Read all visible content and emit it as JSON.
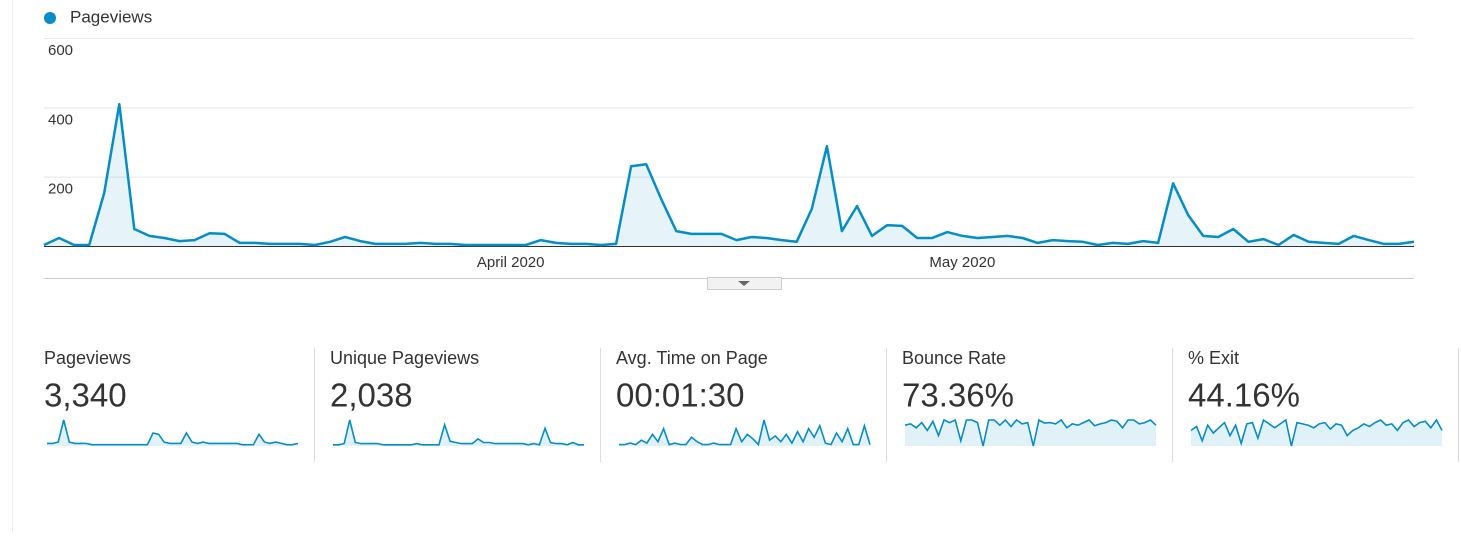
{
  "chart_data": {
    "type": "line",
    "categories": [
      null,
      null,
      null,
      null,
      null,
      null,
      null,
      null,
      null,
      null,
      null,
      null,
      null,
      null,
      null,
      null,
      null,
      null,
      null,
      null,
      null,
      null,
      null,
      null,
      null,
      null,
      null,
      null,
      null,
      null,
      null,
      "April 2020",
      null,
      null,
      null,
      null,
      null,
      null,
      null,
      null,
      null,
      null,
      null,
      null,
      null,
      null,
      null,
      null,
      null,
      null,
      null,
      null,
      null,
      null,
      null,
      null,
      null,
      null,
      null,
      null,
      null,
      "May 2020",
      null,
      null,
      null,
      null,
      null,
      null,
      null,
      null,
      null,
      null,
      null,
      null,
      null,
      null,
      null,
      null,
      null,
      null,
      null,
      null,
      null,
      null,
      null,
      null,
      null,
      null,
      null,
      null,
      null,
      null
    ],
    "series": [
      {
        "name": "Pageviews",
        "color": "#058dc7",
        "values": [
          3,
          23,
          3,
          3,
          153,
          409,
          49,
          29,
          23,
          14,
          17,
          37,
          35,
          9,
          9,
          6,
          6,
          6,
          3,
          12,
          26,
          14,
          6,
          6,
          6,
          9,
          6,
          6,
          3,
          3,
          3,
          3,
          3,
          17,
          9,
          6,
          6,
          3,
          6,
          230,
          236,
          135,
          43,
          35,
          35,
          35,
          17,
          26,
          23,
          17,
          12,
          107,
          288,
          43,
          115,
          29,
          60,
          58,
          23,
          23,
          40,
          29,
          23,
          26,
          29,
          23,
          9,
          17,
          14,
          12,
          3,
          9,
          6,
          14,
          9,
          181,
          89,
          29,
          26,
          49,
          12,
          20,
          3,
          32,
          12,
          9,
          6,
          29,
          17,
          6,
          6,
          12
        ]
      }
    ],
    "ylim": [
      0,
      600
    ],
    "yticks": [
      200,
      400,
      600
    ],
    "grid": true,
    "area": true
  },
  "metrics": [
    {
      "label": "Pageviews",
      "value": "3,340",
      "sparkline": [
        2,
        2,
        3,
        20,
        3,
        2,
        2,
        2,
        1,
        1,
        1,
        1,
        1,
        1,
        1,
        1,
        1,
        1,
        1,
        10,
        9,
        3,
        2,
        2,
        2,
        10,
        3,
        2,
        3,
        2,
        2,
        2,
        2,
        2,
        2,
        1,
        1,
        1,
        9,
        3,
        2,
        3,
        2,
        1,
        1,
        2
      ]
    },
    {
      "label": "Unique Pageviews",
      "value": "2,038",
      "sparkline": [
        1,
        1,
        2,
        22,
        3,
        2,
        2,
        2,
        2,
        1,
        1,
        1,
        1,
        1,
        1,
        2,
        1,
        1,
        1,
        1,
        18,
        4,
        3,
        2,
        2,
        2,
        6,
        3,
        3,
        2,
        2,
        2,
        2,
        2,
        2,
        1,
        2,
        1,
        15,
        3,
        2,
        2,
        1,
        3,
        1,
        1
      ]
    },
    {
      "label": "Avg. Time on Page",
      "value": "00:01:30",
      "sparkline": [
        1,
        1,
        2,
        1,
        4,
        2,
        8,
        3,
        12,
        1,
        2,
        1,
        1,
        6,
        3,
        1,
        1,
        2,
        1,
        1,
        1,
        12,
        3,
        8,
        5,
        1,
        18,
        4,
        7,
        3,
        8,
        2,
        10,
        3,
        12,
        6,
        14,
        2,
        1,
        9,
        3,
        12,
        1,
        1,
        14,
        1
      ]
    },
    {
      "label": "Bounce Rate",
      "value": "73.36%",
      "sparkline": [
        80,
        85,
        70,
        90,
        60,
        95,
        40,
        100,
        90,
        100,
        20,
        100,
        100,
        90,
        0,
        100,
        100,
        80,
        100,
        75,
        100,
        85,
        90,
        0,
        100,
        88,
        90,
        85,
        100,
        70,
        85,
        80,
        90,
        100,
        78,
        85,
        90,
        100,
        95,
        70,
        100,
        100,
        85,
        90,
        100,
        80
      ]
    },
    {
      "label": "% Exit",
      "value": "44.16%",
      "sparkline": [
        60,
        75,
        20,
        80,
        50,
        70,
        90,
        40,
        80,
        10,
        85,
        90,
        30,
        100,
        85,
        70,
        85,
        100,
        0,
        90,
        85,
        80,
        70,
        85,
        90,
        65,
        85,
        80,
        40,
        60,
        70,
        85,
        75,
        90,
        100,
        80,
        85,
        60,
        90,
        100,
        75,
        90,
        95,
        70,
        100,
        60
      ]
    }
  ]
}
